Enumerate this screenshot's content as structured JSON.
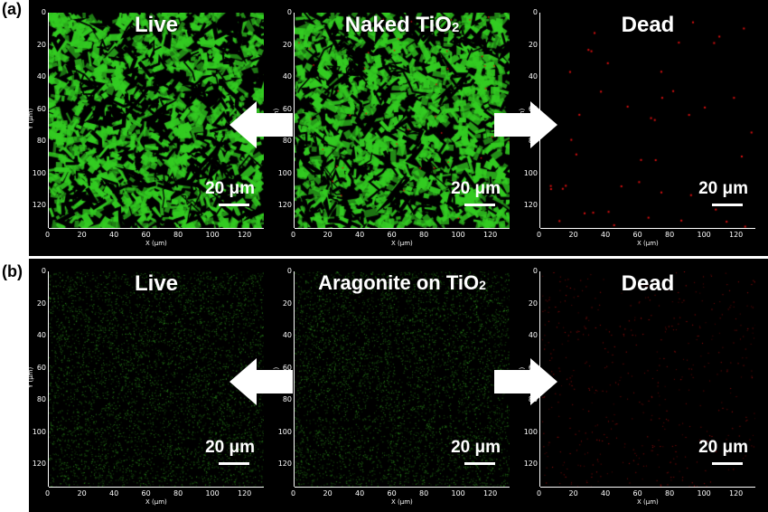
{
  "rows": [
    {
      "label": "(a)",
      "panels": [
        {
          "title": "Live",
          "color": "#33cc22",
          "density": "dense"
        },
        {
          "title": "Naked TiO",
          "sub": "2",
          "color": "#33cc22",
          "density": "dense"
        },
        {
          "title": "Dead",
          "color": "#e01010",
          "density": "sparse"
        }
      ]
    },
    {
      "label": "(b)",
      "panels": [
        {
          "title": "Live",
          "color": "#2f9a1e",
          "density": "speckle"
        },
        {
          "title": "Aragonite on TiO",
          "sub": "2",
          "color": "#2f9a1e",
          "density": "speckle"
        },
        {
          "title": "Dead",
          "color": "#c01010",
          "density": "sparse-fine"
        }
      ]
    }
  ],
  "scale_bar_label": "20 μm",
  "x_axis_title": "X (μm)",
  "y_axis_title": "Y (μm)",
  "x_ticks": [
    "0",
    "20",
    "40",
    "60",
    "80",
    "100",
    "120"
  ],
  "y_ticks": [
    "0",
    "20",
    "40",
    "60",
    "80",
    "100",
    "120"
  ],
  "arrow_color": "#ffffff"
}
